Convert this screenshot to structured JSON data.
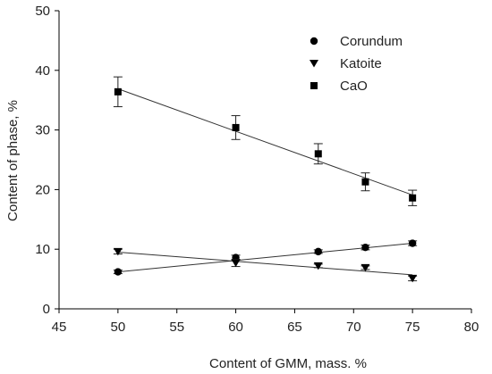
{
  "chart_data": {
    "type": "scatter",
    "title": "",
    "xlabel": "Content of GMM, mass. %",
    "ylabel": "Content of phase, %",
    "xlim": [
      45,
      80
    ],
    "ylim": [
      0,
      50
    ],
    "xticks": [
      45,
      50,
      55,
      60,
      65,
      70,
      75,
      80
    ],
    "yticks": [
      0,
      10,
      20,
      30,
      40,
      50
    ],
    "grid": false,
    "legend_position": "top-right",
    "series": [
      {
        "name": "Corundum",
        "marker": "circle",
        "x": [
          50,
          60,
          67,
          71,
          75
        ],
        "y": [
          6.2,
          8.6,
          9.6,
          10.3,
          11.0
        ],
        "error": [
          0.3,
          0.4,
          0.3,
          0.4,
          0.4
        ],
        "trend": [
          [
            50,
            6.2
          ],
          [
            75,
            11.0
          ]
        ]
      },
      {
        "name": "Katoite",
        "marker": "triangle-down",
        "x": [
          50,
          60,
          67,
          71,
          75
        ],
        "y": [
          9.6,
          7.7,
          7.2,
          6.9,
          5.1
        ],
        "error": [
          0.4,
          0.6,
          0.3,
          0.3,
          0.4
        ],
        "trend": [
          [
            50,
            9.5
          ],
          [
            75,
            5.7
          ]
        ]
      },
      {
        "name": "CaO",
        "marker": "square",
        "x": [
          50,
          60,
          67,
          71,
          75
        ],
        "y": [
          36.4,
          30.4,
          26.0,
          21.3,
          18.6
        ],
        "error": [
          2.5,
          2.0,
          1.7,
          1.5,
          1.3
        ],
        "trend": [
          [
            50,
            36.9
          ],
          [
            75,
            19.1
          ]
        ]
      }
    ],
    "colors": {
      "marker": "#000000",
      "line": "#333333",
      "axis": "#000000"
    }
  }
}
